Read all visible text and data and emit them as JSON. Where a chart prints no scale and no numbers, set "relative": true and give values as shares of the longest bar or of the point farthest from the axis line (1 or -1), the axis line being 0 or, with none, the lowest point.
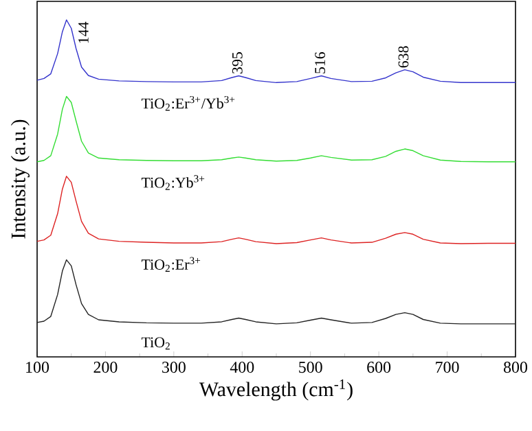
{
  "chart_data": {
    "type": "line",
    "relative": true,
    "xlabel": "Wavelength (cm$^{-1}$)",
    "ylabel": "Intensity (a.u.)",
    "xlim": [
      100,
      800
    ],
    "xticks": [
      100,
      200,
      300,
      400,
      500,
      600,
      700,
      800
    ],
    "x": [
      100,
      110,
      120,
      130,
      137,
      143,
      150,
      157,
      165,
      175,
      190,
      220,
      260,
      300,
      340,
      370,
      385,
      395,
      405,
      420,
      450,
      480,
      500,
      516,
      530,
      560,
      590,
      610,
      625,
      638,
      650,
      665,
      690,
      720,
      760,
      800
    ],
    "series": [
      {
        "name": "TiO$_{2}$:Er$^{3+}$/Yb$^{3+}$",
        "color": "#3333cc",
        "values": [
          0.821,
          0.826,
          0.84,
          0.9,
          0.965,
          1.0,
          0.975,
          0.915,
          0.86,
          0.835,
          0.824,
          0.819,
          0.817,
          0.816,
          0.816,
          0.82,
          0.829,
          0.834,
          0.829,
          0.82,
          0.814,
          0.817,
          0.826,
          0.834,
          0.826,
          0.817,
          0.818,
          0.828,
          0.843,
          0.852,
          0.846,
          0.83,
          0.818,
          0.814,
          0.814,
          0.814
        ]
      },
      {
        "name": "TiO$_{2}$:Yb$^{3+}$",
        "color": "#33dd33",
        "values": [
          0.579,
          0.583,
          0.597,
          0.661,
          0.735,
          0.773,
          0.755,
          0.7,
          0.64,
          0.605,
          0.59,
          0.585,
          0.583,
          0.582,
          0.582,
          0.585,
          0.59,
          0.593,
          0.59,
          0.585,
          0.581,
          0.583,
          0.59,
          0.597,
          0.592,
          0.584,
          0.585,
          0.595,
          0.61,
          0.617,
          0.612,
          0.597,
          0.584,
          0.58,
          0.579,
          0.579
        ]
      },
      {
        "name": "TiO$_{2}$:Er$^{3+}$",
        "color": "#dd2222",
        "values": [
          0.343,
          0.347,
          0.361,
          0.425,
          0.498,
          0.536,
          0.518,
          0.462,
          0.402,
          0.367,
          0.35,
          0.343,
          0.34,
          0.338,
          0.338,
          0.342,
          0.349,
          0.353,
          0.349,
          0.342,
          0.336,
          0.339,
          0.347,
          0.353,
          0.347,
          0.338,
          0.34,
          0.352,
          0.364,
          0.369,
          0.364,
          0.349,
          0.338,
          0.336,
          0.337,
          0.337
        ]
      },
      {
        "name": "TiO$_{2}$",
        "color": "#222222",
        "values": [
          0.102,
          0.106,
          0.12,
          0.185,
          0.255,
          0.288,
          0.27,
          0.214,
          0.158,
          0.126,
          0.11,
          0.104,
          0.101,
          0.1,
          0.1,
          0.104,
          0.111,
          0.115,
          0.111,
          0.104,
          0.098,
          0.101,
          0.109,
          0.115,
          0.11,
          0.1,
          0.102,
          0.114,
          0.126,
          0.131,
          0.126,
          0.111,
          0.1,
          0.098,
          0.098,
          0.098
        ]
      }
    ],
    "annotations": [
      {
        "text": "144",
        "x": 144,
        "y": 1.0
      },
      {
        "text": "395",
        "x": 395,
        "y": 0.834
      },
      {
        "text": "516",
        "x": 516,
        "y": 0.834
      },
      {
        "text": "638",
        "x": 638,
        "y": 0.852
      }
    ],
    "line_style": "solid",
    "marker": "none"
  }
}
